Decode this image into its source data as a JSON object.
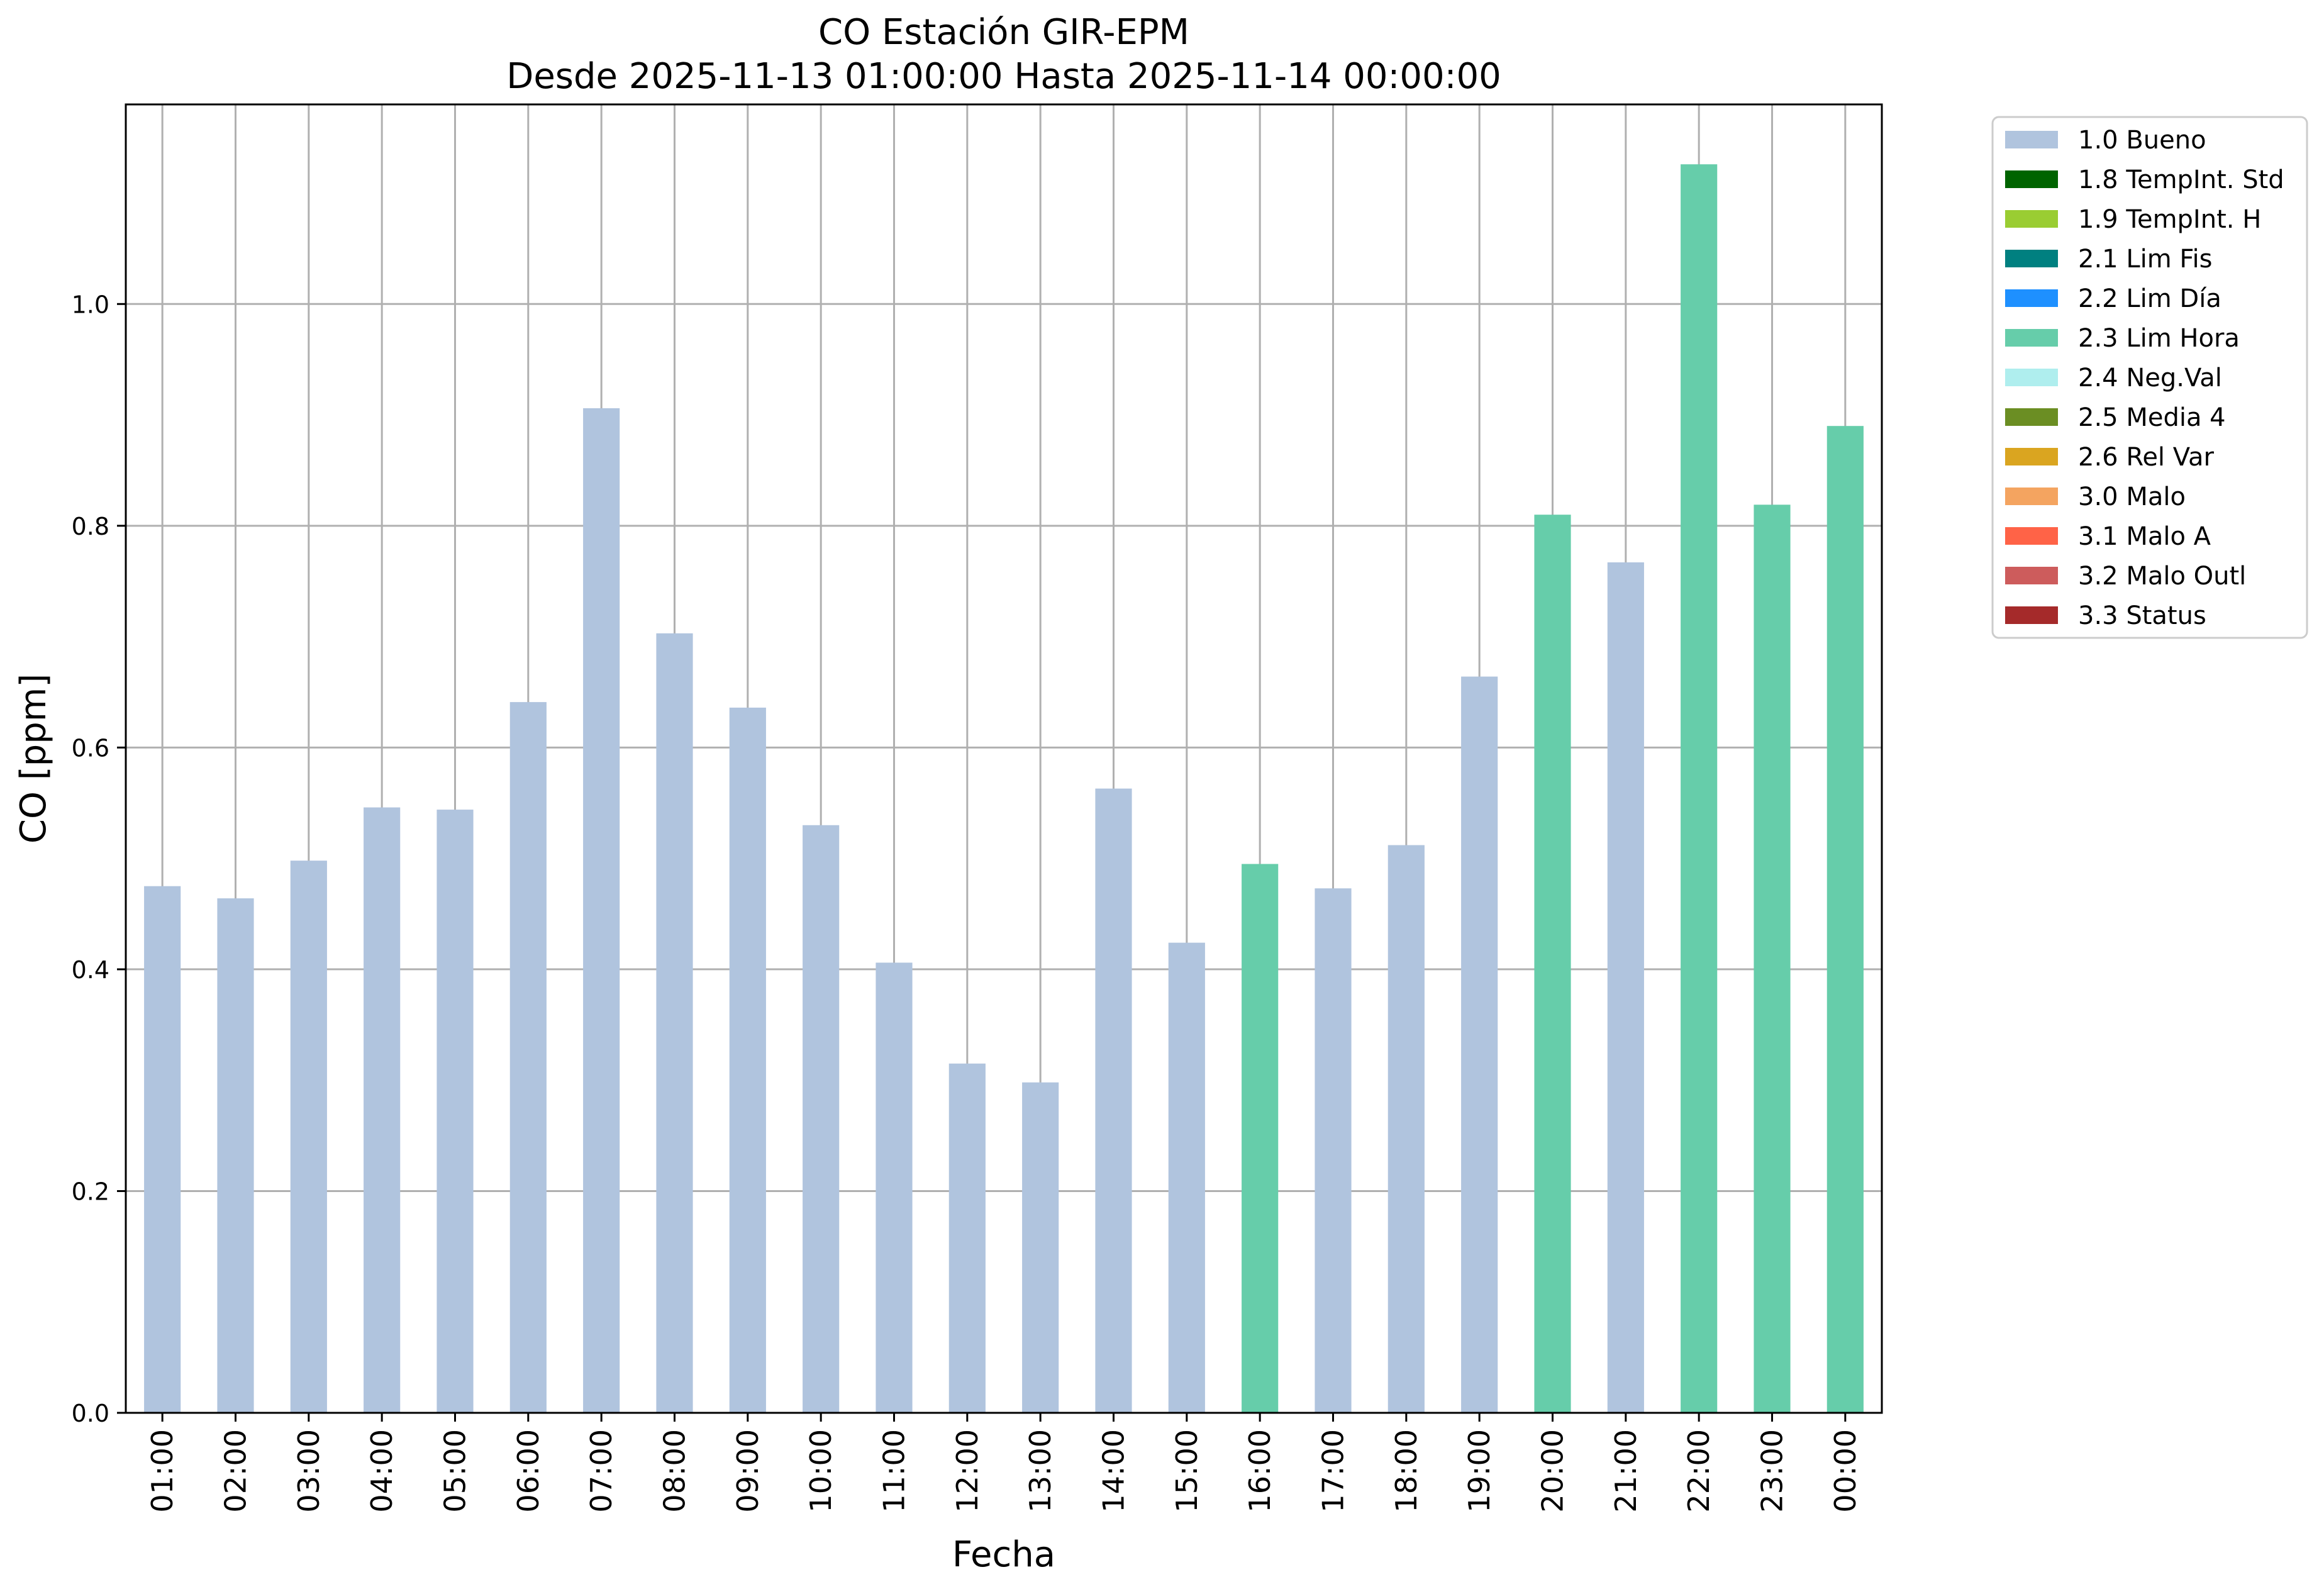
{
  "chart_data": {
    "type": "bar",
    "title": "CO Estación GIR-EPM",
    "subtitle": "Desde 2025-11-13 01:00:00 Hasta 2025-11-14 00:00:00",
    "xlabel": "Fecha",
    "ylabel": "CO [ppm]",
    "ylim": [
      0,
      1.18
    ],
    "yticks": [
      0.0,
      0.2,
      0.4,
      0.6,
      0.8,
      1.0
    ],
    "ytick_labels": [
      "0.0",
      "0.2",
      "0.4",
      "0.6",
      "0.8",
      "1.0"
    ],
    "grid": true,
    "legend_position": "outside-top-right",
    "categories": [
      "01:00",
      "02:00",
      "03:00",
      "04:00",
      "05:00",
      "06:00",
      "07:00",
      "08:00",
      "09:00",
      "10:00",
      "11:00",
      "12:00",
      "13:00",
      "14:00",
      "15:00",
      "16:00",
      "17:00",
      "18:00",
      "19:00",
      "20:00",
      "21:00",
      "22:00",
      "23:00",
      "00:00"
    ],
    "values": [
      0.475,
      0.464,
      0.498,
      0.546,
      0.544,
      0.641,
      0.906,
      0.703,
      0.636,
      0.53,
      0.406,
      0.315,
      0.298,
      0.563,
      0.424,
      0.495,
      0.473,
      0.512,
      0.664,
      0.81,
      0.767,
      1.126,
      0.819,
      0.89
    ],
    "flags": [
      "1.0 Bueno",
      "1.0 Bueno",
      "1.0 Bueno",
      "1.0 Bueno",
      "1.0 Bueno",
      "1.0 Bueno",
      "1.0 Bueno",
      "1.0 Bueno",
      "1.0 Bueno",
      "1.0 Bueno",
      "1.0 Bueno",
      "1.0 Bueno",
      "1.0 Bueno",
      "1.0 Bueno",
      "1.0 Bueno",
      "2.3 Lim Hora",
      "1.0 Bueno",
      "1.0 Bueno",
      "1.0 Bueno",
      "2.3 Lim Hora",
      "1.0 Bueno",
      "2.3 Lim Hora",
      "2.3 Lim Hora",
      "2.3 Lim Hora"
    ],
    "legend": [
      {
        "name": "1.0 Bueno",
        "color": "#b0c4de"
      },
      {
        "name": "1.8 TempInt. Std",
        "color": "#006400"
      },
      {
        "name": "1.9 TempInt. H",
        "color": "#9acd32"
      },
      {
        "name": "2.1 Lim Fis",
        "color": "#008080"
      },
      {
        "name": "2.2 Lim Día",
        "color": "#1e90ff"
      },
      {
        "name": "2.3 Lim Hora",
        "color": "#66cdaa"
      },
      {
        "name": "2.4 Neg.Val",
        "color": "#afeeee"
      },
      {
        "name": "2.5 Media 4",
        "color": "#6b8e23"
      },
      {
        "name": "2.6 Rel Var",
        "color": "#daa520"
      },
      {
        "name": "3.0 Malo",
        "color": "#f4a460"
      },
      {
        "name": "3.1 Malo A",
        "color": "#ff6347"
      },
      {
        "name": "3.2 Malo Outl",
        "color": "#cd5c5c"
      },
      {
        "name": "3.3 Status",
        "color": "#a52a2a"
      }
    ]
  }
}
